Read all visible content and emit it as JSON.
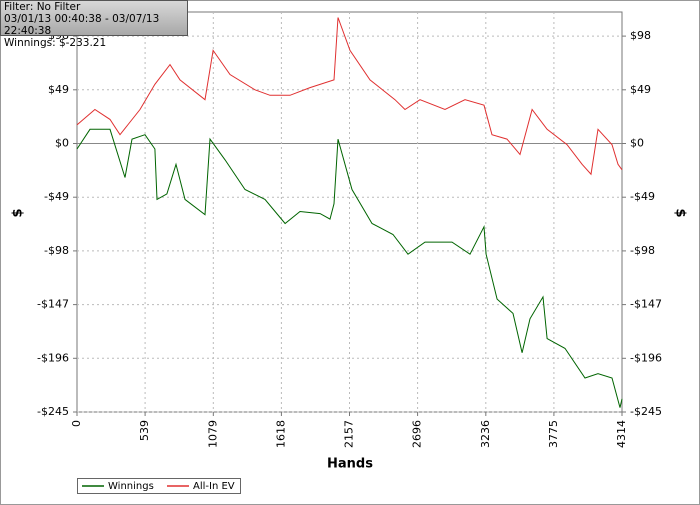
{
  "info": {
    "filter": "Filter: No Filter",
    "dates": "03/01/13 00:40:38 - 03/07/13 22:40:38",
    "winnings": "Winnings: $-233.21"
  },
  "chart_data": {
    "type": "line",
    "x_label": "Hands",
    "y_label": "$",
    "y2_label": "$",
    "xlim": [
      0,
      4314
    ],
    "xticks": [
      0,
      539,
      1079,
      1618,
      2157,
      2696,
      3236,
      3775,
      4314
    ],
    "ylim": [
      -245,
      120
    ],
    "yticks": [
      {
        "value": -245,
        "label": "-$245"
      },
      {
        "value": -196,
        "label": "-$196"
      },
      {
        "value": -147,
        "label": "-$147"
      },
      {
        "value": -98,
        "label": "-$98"
      },
      {
        "value": -49,
        "label": "-$49"
      },
      {
        "value": 0,
        "label": "$0"
      },
      {
        "value": 49,
        "label": "$49"
      },
      {
        "value": 98,
        "label": "$98"
      }
    ],
    "grid": true,
    "series": [
      {
        "name": "Winnings",
        "color": "#006400",
        "x": [
          0,
          103,
          261,
          380,
          435,
          538,
          617,
          633,
          712,
          784,
          855,
          1013,
          1053,
          1172,
          1330,
          1488,
          1647,
          1765,
          1924,
          2003,
          2034,
          2066,
          2177,
          2335,
          2501,
          2620,
          2755,
          2968,
          3111,
          3222,
          3238,
          3325,
          3451,
          3523,
          3586,
          3689,
          3721,
          3863,
          4021,
          4124,
          4235,
          4298,
          4314
        ],
        "values": [
          -5,
          13,
          13,
          -31,
          4,
          8,
          -5,
          -51,
          -46,
          -19,
          -51,
          -65,
          4,
          -15,
          -42,
          -51,
          -73,
          -62,
          -64,
          -69,
          -55,
          4,
          -42,
          -73,
          -83,
          -101,
          -90,
          -90,
          -101,
          -76,
          -101,
          -142,
          -155,
          -191,
          -160,
          -140,
          -178,
          -187,
          -214,
          -210,
          -214,
          -241,
          -233
        ]
      },
      {
        "name": "All-In EV",
        "color": "#e03030",
        "x": [
          0,
          142,
          261,
          340,
          499,
          617,
          736,
          815,
          1013,
          1077,
          1211,
          1409,
          1528,
          1686,
          1844,
          2034,
          2066,
          2161,
          2319,
          2517,
          2596,
          2715,
          2913,
          3071,
          3222,
          3285,
          3404,
          3507,
          3602,
          3721,
          3879,
          3998,
          4069,
          4124,
          4235,
          4282,
          4314
        ],
        "values": [
          17,
          31,
          22,
          8,
          31,
          54,
          72,
          58,
          40,
          85,
          63,
          49,
          44,
          44,
          51,
          58,
          115,
          85,
          58,
          40,
          31,
          40,
          31,
          40,
          35,
          8,
          4,
          -10,
          31,
          13,
          -1,
          -19,
          -28,
          13,
          -1,
          -19,
          -24
        ]
      }
    ]
  }
}
